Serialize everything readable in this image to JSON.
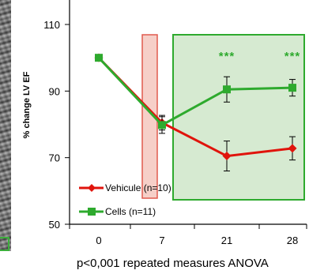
{
  "chart_data": {
    "type": "line",
    "title": "",
    "ylabel": "% change LV EF",
    "xlabel": "",
    "x": [
      0,
      7,
      21,
      28
    ],
    "x_tick_labels": [
      "0",
      "7",
      "21",
      "28"
    ],
    "ylim": [
      50,
      120
    ],
    "y_ticks": [
      50,
      70,
      90,
      110
    ],
    "y_tick_labels": [
      "50",
      "70",
      "90",
      "110"
    ],
    "series": [
      {
        "name": "Vehicule (n=10)",
        "color": "#e0140c",
        "marker": "diamond",
        "values": [
          100,
          80.5,
          70.5,
          72.8
        ],
        "errors": [
          0,
          2.2,
          4.5,
          3.5
        ]
      },
      {
        "name": "Cells (n=11)",
        "color": "#2eaa2e",
        "marker": "square",
        "values": [
          100,
          79.8,
          90.5,
          91.0
        ],
        "errors": [
          0,
          2.5,
          3.8,
          2.5
        ]
      }
    ],
    "annotations": [
      {
        "text": "***",
        "x": 21
      },
      {
        "text": "***",
        "x": 28
      }
    ],
    "highlights": [
      {
        "kind": "red-band",
        "x_range": [
          4.2,
          5.5
        ],
        "y_range": [
          64,
          113
        ],
        "color": "#f4c4bc"
      },
      {
        "kind": "green-box",
        "x_range": [
          8.5,
          33
        ],
        "y_range": [
          63.5,
          113
        ],
        "color": "#d8ecd3"
      }
    ],
    "legend_position": "bottom-left",
    "footnote": "p<0,001 repeated measures ANOVA"
  }
}
